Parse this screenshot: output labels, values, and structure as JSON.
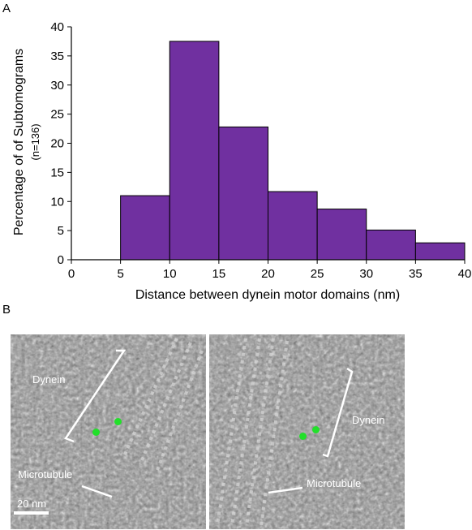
{
  "panels": {
    "a_label": "A",
    "b_label": "B"
  },
  "chart_data": {
    "type": "bar",
    "bins": [
      {
        "start": 5,
        "end": 10,
        "value": 11
      },
      {
        "start": 10,
        "end": 15,
        "value": 37.5
      },
      {
        "start": 15,
        "end": 20,
        "value": 22.8
      },
      {
        "start": 20,
        "end": 25,
        "value": 11.7
      },
      {
        "start": 25,
        "end": 30,
        "value": 8.7
      },
      {
        "start": 30,
        "end": 35,
        "value": 5.1
      },
      {
        "start": 35,
        "end": 40,
        "value": 2.9
      }
    ],
    "xlabel": "Distance between dynein motor domains (nm)",
    "ylabel": "Percentage of of Subtomograms",
    "ylabel_sub": "(n=136)",
    "xlim": [
      0,
      40
    ],
    "ylim": [
      0,
      40
    ],
    "xticks": [
      0,
      5,
      10,
      15,
      20,
      25,
      30,
      35,
      40
    ],
    "yticks": [
      0,
      5,
      10,
      15,
      20,
      25,
      30,
      35,
      40
    ],
    "bar_color": "#7030a0",
    "grid": false
  },
  "images": {
    "left": {
      "dynein_label": "Dynein",
      "microtubule_label": "Microtubule",
      "scale_label": "20 nm"
    },
    "right": {
      "dynein_label": "Dynein",
      "microtubule_label": "Microtubule"
    },
    "marker_color": "#22e02a"
  }
}
